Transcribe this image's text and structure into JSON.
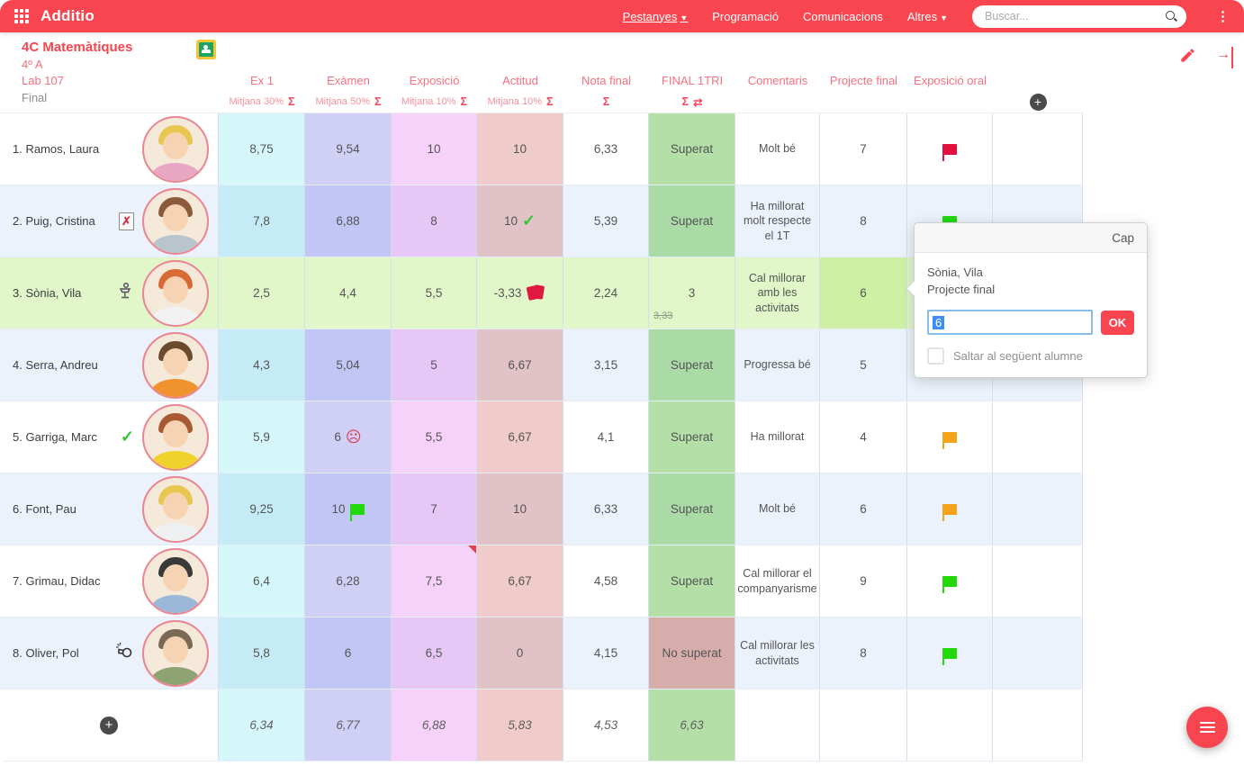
{
  "topbar": {
    "app_name": "Additio",
    "nav": [
      {
        "label": "Pestanyes",
        "dropdown": true,
        "underlined": true
      },
      {
        "label": "Programació",
        "dropdown": false,
        "underlined": false
      },
      {
        "label": "Comunicacions",
        "dropdown": false,
        "underlined": false
      },
      {
        "label": "Altres",
        "dropdown": true,
        "underlined": false
      }
    ],
    "search_placeholder": "Buscar..."
  },
  "class_header": {
    "title": "4C Matemàtiques",
    "group": "4º A",
    "room": "Lab 107",
    "term": "Final"
  },
  "columns": [
    {
      "label": "Ex 1",
      "sub": "Mitjana 30%",
      "sigma": true,
      "swap": false,
      "tint": "t-cyan"
    },
    {
      "label": "Exàmen",
      "sub": "Mitjana 50%",
      "sigma": true,
      "swap": false,
      "tint": "t-lav"
    },
    {
      "label": "Exposició",
      "sub": "Mitjana 10%",
      "sigma": true,
      "swap": false,
      "tint": "t-pink"
    },
    {
      "label": "Actitud",
      "sub": "Mitjana 10%",
      "sigma": true,
      "swap": false,
      "tint": "t-sal"
    },
    {
      "label": "Nota final",
      "sub": "",
      "sigma": true,
      "swap": false,
      "tint": ""
    },
    {
      "label": "FINAL 1TRI",
      "sub": "",
      "sigma": true,
      "swap": true,
      "tint": ""
    },
    {
      "label": "Comentaris",
      "sub": "",
      "sigma": false,
      "swap": false,
      "tint": ""
    },
    {
      "label": "Projecte final",
      "sub": "",
      "sigma": false,
      "swap": false,
      "tint": ""
    },
    {
      "label": "Exposició oral",
      "sub": "",
      "sigma": false,
      "swap": false,
      "tint": ""
    },
    {
      "label": "",
      "sub": "",
      "sigma": false,
      "swap": false,
      "tint": "",
      "add_button": true
    }
  ],
  "students": [
    {
      "name": "1. Ramos, Laura",
      "row_icon": null,
      "selected": false,
      "ex1": "8,75",
      "examen": "9,54",
      "examen_icon": null,
      "exposicio": "10",
      "exposicio_marker": false,
      "actitud": "10",
      "actitud_icon": null,
      "nota_final": "6,33",
      "final_1tri": "Superat",
      "final_1tri_type": "pass",
      "final_1tri_old": null,
      "comentaris": "Molt bé",
      "projecte_final": "7",
      "projecte_selected": false,
      "exposicio_oral_flag": "red",
      "avatar": {
        "hair": "#e9c64f",
        "shirt": "#e8a7c3"
      }
    },
    {
      "name": "2. Puig, Cristina",
      "row_icon": "absence",
      "selected": false,
      "ex1": "7,8",
      "examen": "6,88",
      "examen_icon": null,
      "exposicio": "8",
      "exposicio_marker": false,
      "actitud": "10",
      "actitud_icon": "check",
      "nota_final": "5,39",
      "final_1tri": "Superat",
      "final_1tri_type": "pass",
      "final_1tri_old": null,
      "comentaris": "Ha millorat molt respecte el 1T",
      "projecte_final": "8",
      "projecte_selected": false,
      "exposicio_oral_flag": "green",
      "avatar": {
        "hair": "#8a5a3b",
        "shirt": "#b9c4cc"
      }
    },
    {
      "name": "3. Sònia, Vila",
      "row_icon": "podium",
      "selected": true,
      "ex1": "2,5",
      "examen": "4,4",
      "examen_icon": null,
      "exposicio": "5,5",
      "exposicio_marker": false,
      "actitud": "-3,33",
      "actitud_icon": "red-cards",
      "nota_final": "2,24",
      "final_1tri": "3",
      "final_1tri_type": "number",
      "final_1tri_old": "3,33",
      "comentaris": "Cal millorar amb les activitats",
      "projecte_final": "6",
      "projecte_selected": true,
      "exposicio_oral_flag": null,
      "avatar": {
        "hair": "#d96a35",
        "shirt": "#f2f2f2"
      }
    },
    {
      "name": "4. Serra, Andreu",
      "row_icon": null,
      "selected": false,
      "ex1": "4,3",
      "examen": "5,04",
      "examen_icon": null,
      "exposicio": "5",
      "exposicio_marker": false,
      "actitud": "6,67",
      "actitud_icon": null,
      "nota_final": "3,15",
      "final_1tri": "Superat",
      "final_1tri_type": "pass",
      "final_1tri_old": null,
      "comentaris": "Progressa bé",
      "projecte_final": "5",
      "projecte_selected": false,
      "exposicio_oral_flag": "green",
      "avatar": {
        "hair": "#6b4a2f",
        "shirt": "#f0922d"
      }
    },
    {
      "name": "5. Garriga, Marc",
      "row_icon": "check",
      "selected": false,
      "ex1": "5,9",
      "examen": "6",
      "examen_icon": "sad-face",
      "exposicio": "5,5",
      "exposicio_marker": false,
      "actitud": "6,67",
      "actitud_icon": null,
      "nota_final": "4,1",
      "final_1tri": "Superat",
      "final_1tri_type": "pass",
      "final_1tri_old": null,
      "comentaris": "Ha millorat",
      "projecte_final": "4",
      "projecte_selected": false,
      "exposicio_oral_flag": "orange",
      "avatar": {
        "hair": "#a85a32",
        "shirt": "#f0d22d"
      }
    },
    {
      "name": "6. Font, Pau",
      "row_icon": null,
      "selected": false,
      "ex1": "9,25",
      "examen": "10",
      "examen_icon": "flag-green",
      "exposicio": "7",
      "exposicio_marker": false,
      "actitud": "10",
      "actitud_icon": null,
      "nota_final": "6,33",
      "final_1tri": "Superat",
      "final_1tri_type": "pass",
      "final_1tri_old": null,
      "comentaris": "Molt bé",
      "projecte_final": "6",
      "projecte_selected": false,
      "exposicio_oral_flag": "orange",
      "avatar": {
        "hair": "#e9c64f",
        "shirt": "#eef0f2"
      }
    },
    {
      "name": "7. Grimau, Didac",
      "row_icon": null,
      "selected": false,
      "ex1": "6,4",
      "examen": "6,28",
      "examen_icon": null,
      "exposicio": "7,5",
      "exposicio_marker": true,
      "actitud": "6,67",
      "actitud_icon": null,
      "nota_final": "4,58",
      "final_1tri": "Superat",
      "final_1tri_type": "pass",
      "final_1tri_old": null,
      "comentaris": "Cal millorar el companyarisme",
      "projecte_final": "9",
      "projecte_selected": false,
      "exposicio_oral_flag": "green",
      "avatar": {
        "hair": "#3a3a3a",
        "shirt": "#9ab7d8"
      }
    },
    {
      "name": "8. Oliver, Pol",
      "row_icon": "whistle",
      "selected": false,
      "ex1": "5,8",
      "examen": "6",
      "examen_icon": null,
      "exposicio": "6,5",
      "exposicio_marker": false,
      "actitud": "0",
      "actitud_icon": null,
      "nota_final": "4,15",
      "final_1tri": "No superat",
      "final_1tri_type": "fail",
      "final_1tri_old": null,
      "comentaris": "Cal millorar les activitats",
      "projecte_final": "8",
      "projecte_selected": false,
      "exposicio_oral_flag": "green",
      "avatar": {
        "hair": "#7a6a55",
        "shirt": "#8fa273"
      }
    }
  ],
  "averages": {
    "ex1": "6,34",
    "examen": "6,77",
    "exposicio": "6,88",
    "actitud": "5,83",
    "nota_final": "4,53",
    "final_1tri": "6,63"
  },
  "popup": {
    "none_label": "Cap",
    "student": "Sònia, Vila",
    "field": "Projecte final",
    "value": "6",
    "ok_label": "OK",
    "skip_label": "Saltar al següent alumne"
  },
  "colors": {
    "accent": "#f8454f",
    "col_ex1": "#d5f6f9",
    "col_examen": "#cfcff5",
    "col_exposicio": "#f5d3f8",
    "col_actitud": "#efcdca",
    "superat_green": "#b9e2ad",
    "no_superat_red": "#e2b4ad",
    "selected_row_green": "#e1f6c9",
    "selected_cell_green": "#cdf0a5",
    "flag_red": "#e40f3e",
    "flag_green": "#21d80a",
    "flag_orange": "#f5a21b",
    "row_stripe": "#ebf2fb"
  }
}
